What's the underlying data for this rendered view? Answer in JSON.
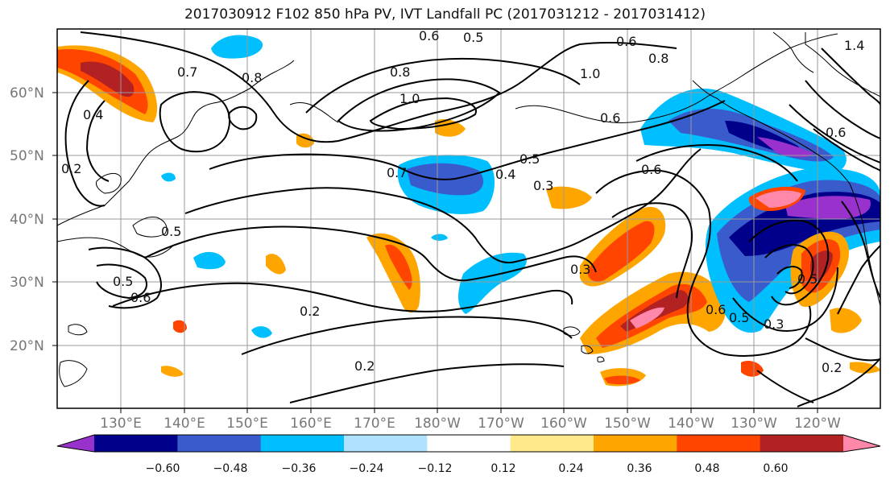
{
  "title": "2017030912 F102 850 hPa PV, IVT Landfall PC (2017031212 - 2017031412)",
  "lat_labels": [
    "60°N",
    "50°N",
    "40°N",
    "30°N",
    "20°N"
  ],
  "lon_labels": [
    "130°E",
    "140°E",
    "150°E",
    "160°E",
    "170°E",
    "180°W",
    "170°W",
    "160°W",
    "150°W",
    "140°W",
    "130°W",
    "120°W"
  ],
  "colorbar": {
    "colors": [
      "#9932CC",
      "#00008B",
      "#3A5BCC",
      "#00BFFF",
      "#B0E2FF",
      "#FFFFFF",
      "#FFE98A",
      "#FFA500",
      "#FF4500",
      "#B22222",
      "#FF88AA"
    ],
    "ticks": [
      "−0.60",
      "−0.48",
      "−0.36",
      "−0.24",
      "−0.12",
      "0.12",
      "0.24",
      "0.36",
      "0.48",
      "0.60"
    ]
  },
  "contour_labels": [
    "0.6",
    "0.5",
    "0.6",
    "0.8",
    "0.7",
    "0.8",
    "0.8",
    "1.0",
    "1.0",
    "0.4",
    "0.2",
    "0.5",
    "0.7",
    "0.4",
    "0.5",
    "0.3",
    "0.6",
    "0.5",
    "0.6",
    "0.2",
    "0.2",
    "0.3",
    "0.6",
    "0.5",
    "0.3",
    "0.5",
    "0.2",
    "0.6",
    "1.4",
    "0.6"
  ]
}
